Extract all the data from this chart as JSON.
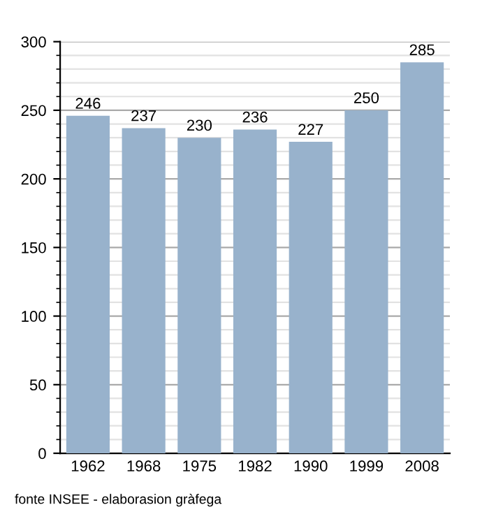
{
  "chart_data": {
    "type": "bar",
    "categories": [
      "1962",
      "1968",
      "1975",
      "1982",
      "1990",
      "1999",
      "2008"
    ],
    "values": [
      246,
      237,
      230,
      236,
      227,
      250,
      285
    ],
    "color": "#98b2cc",
    "data_labels": true,
    "ylim": [
      0,
      300
    ],
    "yticks": [
      0,
      {
        "value": 10,
        "label": null
      },
      {
        "value": 20,
        "label": null
      },
      {
        "value": 30,
        "label": null
      },
      {
        "value": 40,
        "label": null
      },
      50,
      {
        "value": 60,
        "label": null
      },
      {
        "value": 70,
        "label": null
      },
      {
        "value": 80,
        "label": null
      },
      {
        "value": 90,
        "label": null
      },
      100,
      {
        "value": 110,
        "label": null
      },
      {
        "value": 120,
        "label": null
      },
      {
        "value": 130,
        "label": null
      },
      {
        "value": 140,
        "label": null
      },
      150,
      {
        "value": 160,
        "label": null
      },
      {
        "value": 170,
        "label": null
      },
      {
        "value": 180,
        "label": null
      },
      {
        "value": 190,
        "label": null
      },
      200,
      {
        "value": 210,
        "label": null
      },
      {
        "value": 220,
        "label": null
      },
      {
        "value": 230,
        "label": null
      },
      {
        "value": 240,
        "label": null
      },
      250,
      {
        "value": 260,
        "label": null
      },
      {
        "value": 270,
        "label": null
      },
      {
        "value": 280,
        "label": null
      },
      {
        "value": 290,
        "label": null
      },
      300
    ],
    "grid": "y",
    "legend": false,
    "annotations": [
      "fonte INSEE - elaborasion gràfega"
    ]
  }
}
